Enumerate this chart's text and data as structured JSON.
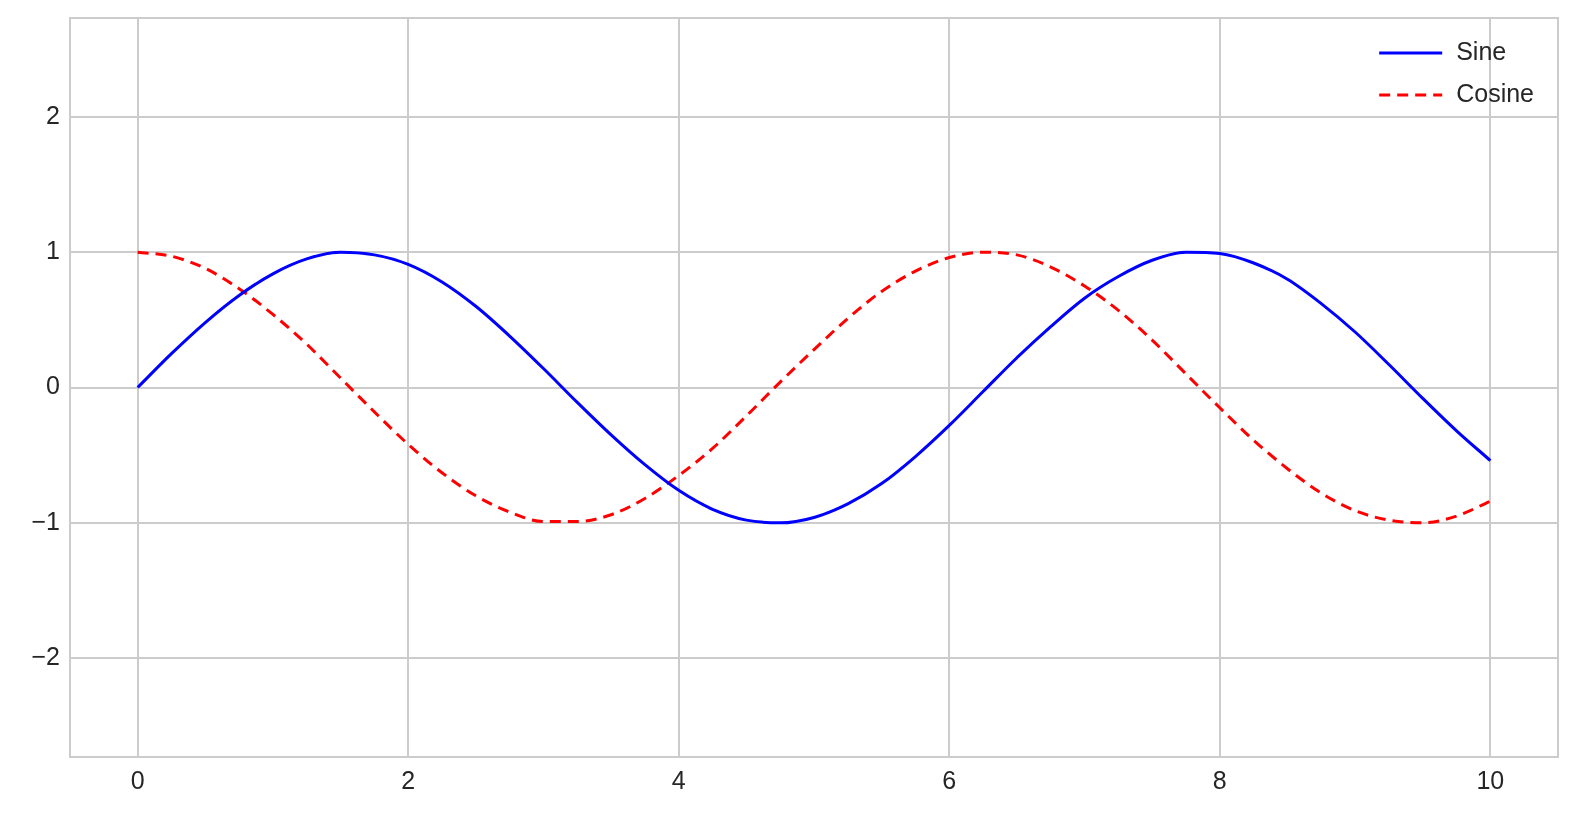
{
  "chart_data": {
    "type": "line",
    "x": [
      0,
      0.25,
      0.5,
      0.75,
      1,
      1.25,
      1.5,
      1.75,
      2,
      2.25,
      2.5,
      2.75,
      3,
      3.25,
      3.5,
      3.75,
      4,
      4.25,
      4.5,
      4.75,
      5,
      5.25,
      5.5,
      5.75,
      6,
      6.25,
      6.5,
      6.75,
      7,
      7.25,
      7.5,
      7.75,
      8,
      8.25,
      8.5,
      8.75,
      9,
      9.25,
      9.5,
      9.75,
      10
    ],
    "series": [
      {
        "name": "Sine",
        "color": "#0000ff",
        "line_style": "solid",
        "values": [
          0,
          0.25,
          0.48,
          0.68,
          0.84,
          0.95,
          1.0,
          0.98,
          0.91,
          0.78,
          0.6,
          0.38,
          0.14,
          -0.11,
          -0.35,
          -0.57,
          -0.76,
          -0.9,
          -0.98,
          -1.0,
          -0.96,
          -0.86,
          -0.71,
          -0.51,
          -0.28,
          -0.03,
          0.22,
          0.45,
          0.66,
          0.82,
          0.94,
          1.0,
          0.99,
          0.92,
          0.8,
          0.62,
          0.41,
          0.17,
          -0.08,
          -0.32,
          -0.54
        ]
      },
      {
        "name": "Cosine",
        "color": "#ff0000",
        "line_style": "dashed",
        "values": [
          1.0,
          0.97,
          0.88,
          0.73,
          0.54,
          0.32,
          0.07,
          -0.18,
          -0.42,
          -0.63,
          -0.8,
          -0.92,
          -0.99,
          -0.99,
          -0.94,
          -0.82,
          -0.65,
          -0.45,
          -0.21,
          0.04,
          0.28,
          0.51,
          0.71,
          0.86,
          0.96,
          1.0,
          0.98,
          0.89,
          0.75,
          0.57,
          0.35,
          0.1,
          -0.15,
          -0.39,
          -0.6,
          -0.78,
          -0.91,
          -0.98,
          -1.0,
          -0.95,
          -0.84
        ]
      }
    ],
    "xlim": [
      -0.5,
      10.5
    ],
    "xticks": [
      0,
      2,
      4,
      6,
      8,
      10
    ],
    "ylim": [
      -2.73,
      2.73
    ],
    "yticks": [
      {
        "value": -2,
        "label": "−2"
      },
      {
        "value": -1,
        "label": "−1"
      },
      0,
      1,
      2
    ],
    "grid": true,
    "legend": "top right",
    "marker": "none"
  }
}
